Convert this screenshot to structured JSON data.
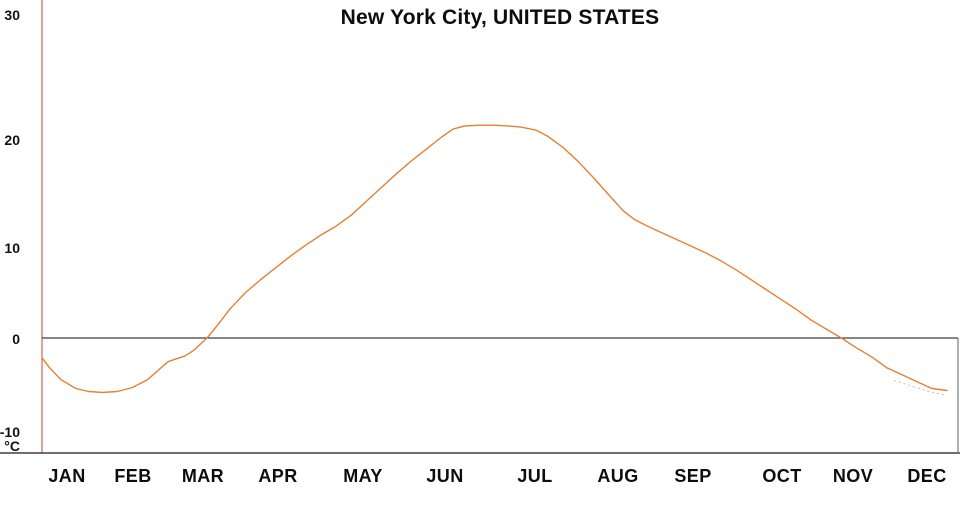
{
  "chart": {
    "title": "New York City, UNITED STATES"
  },
  "chart_data": {
    "type": "line",
    "title": "New York City, UNITED STATES",
    "xlabel": "",
    "ylabel": "°C",
    "y_unit_label": "°C",
    "ylim": [
      -10,
      30
    ],
    "y_tick_labels": [
      "30",
      "20",
      "10",
      "0",
      "-10"
    ],
    "y_tick_values": [
      30,
      20,
      10,
      0,
      -10
    ],
    "x_tick_labels": [
      "JAN",
      "FEB",
      "MAR",
      "APR",
      "MAY",
      "JUN",
      "JUL",
      "AUG",
      "SEP",
      "OCT",
      "NOV",
      "DEC"
    ],
    "x_range_months": [
      0,
      12
    ],
    "grid": "none (horizontal reference line at 0°C only)",
    "legend": "none",
    "zero_reference_line": 0,
    "series": [
      {
        "name": "temperature",
        "style": "solid",
        "color": "#E58134",
        "points_month_degC": [
          [
            0.0,
            -2.0
          ],
          [
            0.1,
            -3.0
          ],
          [
            0.25,
            -4.2
          ],
          [
            0.45,
            -5.1
          ],
          [
            0.62,
            -5.4
          ],
          [
            0.8,
            -5.5
          ],
          [
            1.0,
            -5.4
          ],
          [
            1.2,
            -5.0
          ],
          [
            1.4,
            -4.2
          ],
          [
            1.55,
            -3.2
          ],
          [
            1.67,
            -2.4
          ],
          [
            1.78,
            -2.1
          ],
          [
            1.9,
            -1.8
          ],
          [
            2.02,
            -1.2
          ],
          [
            2.2,
            0.1
          ],
          [
            2.35,
            1.5
          ],
          [
            2.5,
            3.0
          ],
          [
            2.7,
            4.6
          ],
          [
            2.9,
            5.9
          ],
          [
            3.1,
            7.1
          ],
          [
            3.3,
            8.3
          ],
          [
            3.5,
            9.4
          ],
          [
            3.7,
            10.4
          ],
          [
            3.9,
            11.3
          ],
          [
            4.1,
            12.4
          ],
          [
            4.3,
            13.8
          ],
          [
            4.5,
            15.2
          ],
          [
            4.7,
            16.6
          ],
          [
            4.9,
            17.9
          ],
          [
            5.1,
            19.1
          ],
          [
            5.3,
            20.3
          ],
          [
            5.45,
            21.1
          ],
          [
            5.6,
            21.4
          ],
          [
            5.8,
            21.5
          ],
          [
            6.0,
            21.5
          ],
          [
            6.2,
            21.4
          ],
          [
            6.35,
            21.3
          ],
          [
            6.55,
            21.0
          ],
          [
            6.7,
            20.4
          ],
          [
            6.9,
            19.3
          ],
          [
            7.1,
            17.9
          ],
          [
            7.3,
            16.3
          ],
          [
            7.5,
            14.6
          ],
          [
            7.7,
            12.9
          ],
          [
            7.85,
            12.0
          ],
          [
            8.0,
            11.4
          ],
          [
            8.2,
            10.7
          ],
          [
            8.4,
            10.0
          ],
          [
            8.6,
            9.3
          ],
          [
            8.8,
            8.6
          ],
          [
            9.0,
            7.8
          ],
          [
            9.2,
            6.9
          ],
          [
            9.4,
            5.9
          ],
          [
            9.6,
            4.9
          ],
          [
            9.8,
            3.9
          ],
          [
            10.0,
            2.9
          ],
          [
            10.2,
            1.8
          ],
          [
            10.4,
            0.9
          ],
          [
            10.6,
            0.0
          ],
          [
            10.8,
            -1.0
          ],
          [
            11.0,
            -1.9
          ],
          [
            11.2,
            -3.0
          ],
          [
            11.4,
            -3.7
          ],
          [
            11.6,
            -4.4
          ],
          [
            11.8,
            -5.1
          ],
          [
            12.0,
            -5.3
          ]
        ]
      },
      {
        "name": "faint-dotted-trace-fragment",
        "style": "dotted",
        "color": "#E8A070",
        "points_month_degC": [
          [
            11.3,
            -4.3
          ],
          [
            11.55,
            -4.9
          ],
          [
            11.8,
            -5.5
          ],
          [
            12.0,
            -5.8
          ]
        ]
      }
    ]
  },
  "colors": {
    "background": "#FFFFFF",
    "curve": "#E58134",
    "y_axis_line": "#C06A50",
    "zero_line": "#3F3F3F",
    "baseline": "#3F3F3F",
    "right_border": "#6E6E6E",
    "text": "#0D0D0D"
  }
}
